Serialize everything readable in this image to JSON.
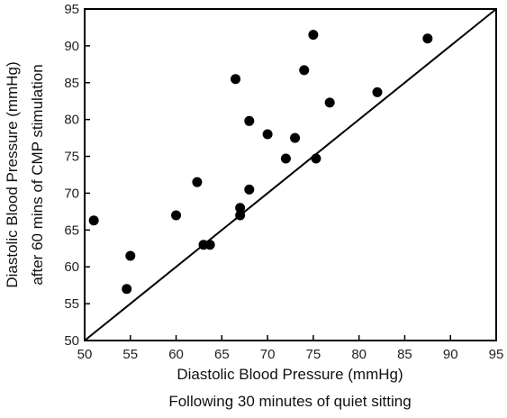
{
  "chart_data": {
    "type": "scatter",
    "title": "",
    "xlabel_lines": [
      "Diastolic Blood Pressure (mmHg)",
      "Following 30 minutes of quiet sitting"
    ],
    "ylabel_lines": [
      "Diastolic Blood Pressure (mmHg)",
      "after 60 mins of CMP stimulation"
    ],
    "xlim": [
      50,
      95
    ],
    "ylim": [
      50,
      95
    ],
    "xticks": [
      50,
      55,
      60,
      65,
      70,
      75,
      80,
      85,
      90,
      95
    ],
    "yticks": [
      50,
      55,
      60,
      65,
      70,
      75,
      80,
      85,
      90,
      95
    ],
    "reference_line": {
      "from": [
        50,
        50
      ],
      "to": [
        95,
        95
      ]
    },
    "points": [
      {
        "x": 51,
        "y": 66.3
      },
      {
        "x": 54.6,
        "y": 57
      },
      {
        "x": 55,
        "y": 61.5
      },
      {
        "x": 60,
        "y": 67
      },
      {
        "x": 62.3,
        "y": 71.5
      },
      {
        "x": 63,
        "y": 63
      },
      {
        "x": 63.7,
        "y": 63
      },
      {
        "x": 66.5,
        "y": 85.5
      },
      {
        "x": 67,
        "y": 67
      },
      {
        "x": 67,
        "y": 68
      },
      {
        "x": 68,
        "y": 79.8
      },
      {
        "x": 68,
        "y": 70.5
      },
      {
        "x": 70,
        "y": 78
      },
      {
        "x": 72,
        "y": 74.7
      },
      {
        "x": 73,
        "y": 77.5
      },
      {
        "x": 74,
        "y": 86.7
      },
      {
        "x": 75,
        "y": 91.5
      },
      {
        "x": 75.3,
        "y": 74.7
      },
      {
        "x": 76.8,
        "y": 82.3
      },
      {
        "x": 82,
        "y": 83.7
      },
      {
        "x": 87.5,
        "y": 91
      }
    ],
    "grid": false,
    "legend": "none",
    "colors": {
      "marker": "#000000",
      "line": "#000000",
      "axis": "#000000"
    }
  }
}
